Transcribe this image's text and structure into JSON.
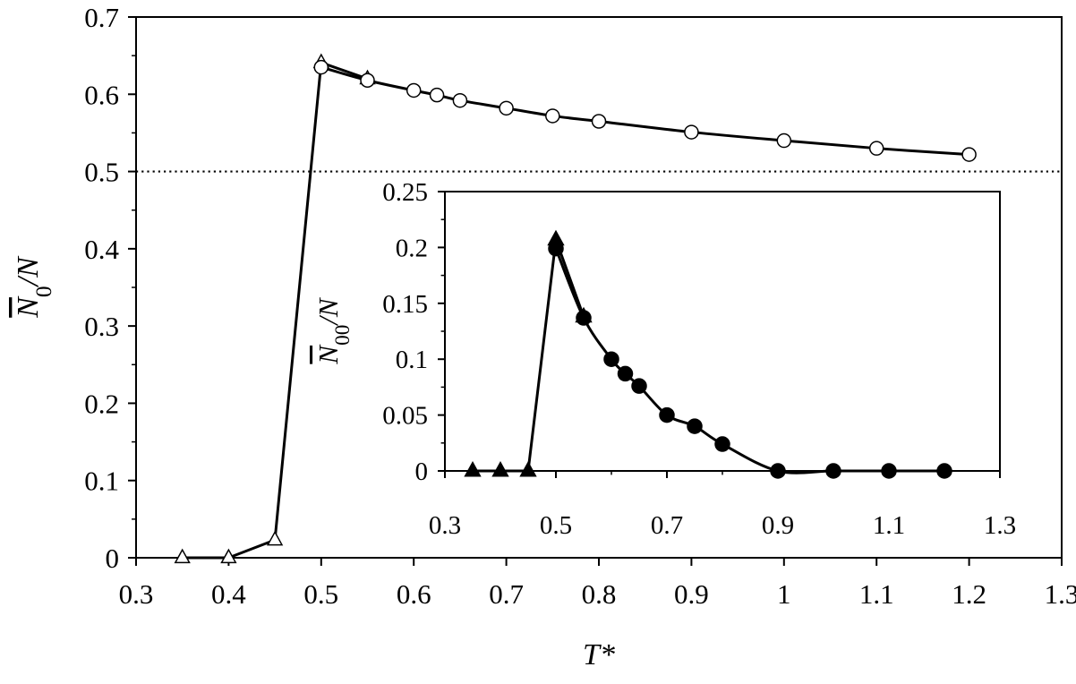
{
  "chart_data": [
    {
      "type": "line",
      "xlabel": "T*",
      "ylabel": "N̅0/N",
      "ylabel_parts": {
        "overbar": "N",
        "sub": "0",
        "rest": "/N"
      },
      "xlim": [
        0.3,
        1.3
      ],
      "ylim": [
        0,
        0.7
      ],
      "x_ticks": [
        "0.3",
        "0.4",
        "0.5",
        "0.6",
        "0.7",
        "0.8",
        "0.9",
        "1",
        "1.1",
        "1.2",
        "1.3"
      ],
      "y_ticks": [
        "0",
        "0.1",
        "0.2",
        "0.3",
        "0.4",
        "0.5",
        "0.6",
        "0.7"
      ],
      "reference_line": {
        "y": 0.5,
        "style": "dotted"
      },
      "grid": false,
      "series": [
        {
          "marker": "open-triangle",
          "line": "straight",
          "points": [
            [
              0.35,
              0.0
            ],
            [
              0.4,
              0.0
            ],
            [
              0.45,
              0.023
            ],
            [
              0.5,
              0.641
            ],
            [
              0.55,
              0.62
            ]
          ]
        },
        {
          "marker": "open-circle",
          "line": "smooth",
          "points": [
            [
              0.5,
              0.635
            ],
            [
              0.55,
              0.618
            ],
            [
              0.6,
              0.605
            ],
            [
              0.625,
              0.599
            ],
            [
              0.65,
              0.592
            ],
            [
              0.7,
              0.582
            ],
            [
              0.75,
              0.572
            ],
            [
              0.8,
              0.565
            ],
            [
              0.9,
              0.551
            ],
            [
              1.0,
              0.54
            ],
            [
              1.1,
              0.53
            ],
            [
              1.2,
              0.522
            ]
          ]
        }
      ]
    },
    {
      "type": "line",
      "inset": true,
      "xlabel": "",
      "ylabel": "N̅00/N",
      "ylabel_parts": {
        "overbar": "N",
        "sub": "00",
        "rest": "/N"
      },
      "xlim": [
        0.3,
        1.3
      ],
      "ylim": [
        0,
        0.25
      ],
      "x_ticks": [
        "0.3",
        "0.5",
        "0.7",
        "0.9",
        "1.1",
        "1.3"
      ],
      "y_ticks": [
        "0",
        "0.05",
        "0.1",
        "0.15",
        "0.2",
        "0.25"
      ],
      "grid": false,
      "series": [
        {
          "marker": "filled-triangle",
          "line": "straight",
          "points": [
            [
              0.35,
              0.0
            ],
            [
              0.4,
              0.0
            ],
            [
              0.45,
              0.0
            ],
            [
              0.5,
              0.207
            ],
            [
              0.55,
              0.138
            ]
          ]
        },
        {
          "marker": "filled-circle",
          "line": "smooth",
          "points": [
            [
              0.5,
              0.199
            ],
            [
              0.55,
              0.137
            ],
            [
              0.6,
              0.1
            ],
            [
              0.625,
              0.087
            ],
            [
              0.65,
              0.076
            ],
            [
              0.7,
              0.05
            ],
            [
              0.75,
              0.04
            ],
            [
              0.8,
              0.024
            ],
            [
              0.9,
              0.0
            ],
            [
              1.0,
              0.0
            ],
            [
              1.1,
              0.0
            ],
            [
              1.2,
              0.0
            ]
          ]
        }
      ]
    }
  ]
}
